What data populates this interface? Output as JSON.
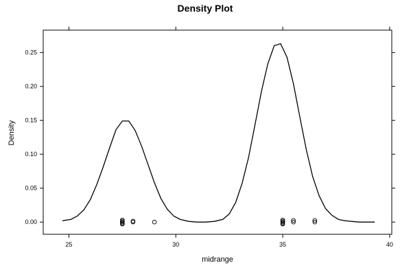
{
  "chart_data": {
    "type": "line",
    "title": "Density Plot",
    "xlabel": "midrange",
    "ylabel": "Density",
    "xlim": [
      23.8,
      40.1
    ],
    "ylim": [
      -0.018,
      0.283
    ],
    "grid": false,
    "x_ticks": [
      {
        "value": 25,
        "label": "25"
      },
      {
        "value": 30,
        "label": "30"
      },
      {
        "value": 35,
        "label": "35"
      },
      {
        "value": 40,
        "label": "40"
      }
    ],
    "y_ticks": [
      {
        "value": 0.0,
        "label": "0.00"
      },
      {
        "value": 0.05,
        "label": "0.05"
      },
      {
        "value": 0.1,
        "label": "0.10"
      },
      {
        "value": 0.15,
        "label": "0.15"
      },
      {
        "value": 0.2,
        "label": "0.20"
      },
      {
        "value": 0.25,
        "label": "0.25"
      }
    ],
    "density_curve": {
      "x": [
        24.7,
        25.1,
        25.4,
        25.7,
        26.0,
        26.3,
        26.6,
        26.9,
        27.2,
        27.5,
        27.8,
        28.1,
        28.4,
        28.7,
        29.0,
        29.3,
        29.6,
        29.9,
        30.2,
        30.6,
        31.0,
        31.4,
        31.8,
        32.2,
        32.5,
        32.8,
        33.1,
        33.4,
        33.7,
        34.0,
        34.3,
        34.6,
        34.9,
        35.2,
        35.5,
        35.8,
        36.1,
        36.4,
        36.7,
        37.0,
        37.3,
        37.6,
        37.9,
        38.2,
        38.6,
        39.0,
        39.3
      ],
      "y": [
        0.002,
        0.004,
        0.009,
        0.018,
        0.033,
        0.055,
        0.081,
        0.109,
        0.136,
        0.149,
        0.149,
        0.135,
        0.112,
        0.085,
        0.058,
        0.035,
        0.019,
        0.009,
        0.004,
        0.001,
        0.0,
        0.0,
        0.001,
        0.004,
        0.012,
        0.029,
        0.057,
        0.095,
        0.143,
        0.192,
        0.233,
        0.26,
        0.263,
        0.243,
        0.204,
        0.155,
        0.107,
        0.067,
        0.039,
        0.02,
        0.01,
        0.004,
        0.002,
        0.001,
        0.0,
        0.0,
        0.0
      ]
    },
    "rug_points": {
      "x": [
        27.5,
        27.5,
        27.5,
        27.5,
        27.5,
        28.0,
        28.0,
        29.0,
        35.0,
        35.0,
        35.0,
        35.0,
        35.0,
        35.5,
        35.5,
        36.5,
        36.5
      ],
      "y": [
        0.0,
        -0.0015,
        0.0015,
        -0.003,
        0.003,
        0.0,
        0.0015,
        0.0,
        0.0,
        -0.0015,
        0.0015,
        -0.003,
        0.003,
        0.0,
        0.0025,
        0.0,
        0.0025
      ]
    }
  }
}
